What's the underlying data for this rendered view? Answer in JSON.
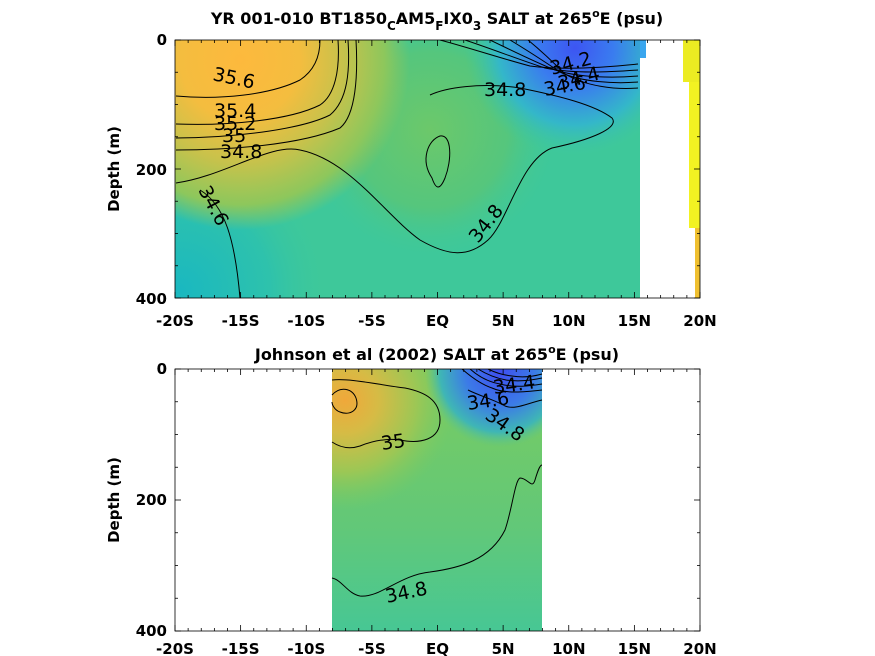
{
  "chart_data": [
    {
      "type": "heatmap",
      "title": {
        "prefix": "YR 001-010 BT1850",
        "sub1": "C",
        "mid1": "AM5",
        "sub2": "F",
        "mid2": "IX0",
        "sub3": "3",
        "suffix": " SALT at 265",
        "sup": "o",
        "end": "E (psu)"
      },
      "ylabel": "Depth (m)",
      "x_ticks": [
        "-20S",
        "-15S",
        "-10S",
        "-5S",
        "EQ",
        "5N",
        "10N",
        "15N",
        "20N"
      ],
      "x_tick_values": [
        -20,
        -15,
        -10,
        -5,
        0,
        5,
        10,
        15,
        20
      ],
      "y_ticks": [
        "0",
        "200",
        "400"
      ],
      "y_tick_values": [
        0,
        200,
        400
      ],
      "xlim": [
        -20,
        20
      ],
      "ylim": [
        0,
        400
      ],
      "y_reversed": true,
      "contour_labels": [
        {
          "text": "35.6",
          "x": -15.5,
          "y": 35
        },
        {
          "text": "35.4",
          "x": -15.3,
          "y": 110
        },
        {
          "text": "35.2",
          "x": -15.5,
          "y": 127
        },
        {
          "text": "35",
          "x": -15.2,
          "y": 145
        },
        {
          "text": "34.8",
          "x": -14.8,
          "y": 177
        },
        {
          "text": "34.6",
          "x": -16.4,
          "y": 256
        },
        {
          "text": "34.8",
          "x": 2.0,
          "y": 79
        },
        {
          "text": "34.8",
          "x": 2.8,
          "y": 278
        },
        {
          "text": "34.2",
          "x": 10.0,
          "y": 55
        },
        {
          "text": "34.4",
          "x": 10.1,
          "y": 70
        },
        {
          "text": "34.6",
          "x": 9.6,
          "y": 79
        }
      ],
      "colors": {
        "fresh": "#3b5cf0",
        "mid": "#3ec89a",
        "salty": "#f6b13d",
        "high": "#f0f02a"
      }
    },
    {
      "type": "heatmap",
      "title": {
        "prefix": "Johnson et al (2002) SALT at 265",
        "sup": "o",
        "end": "E (psu)"
      },
      "ylabel": "Depth (m)",
      "x_ticks": [
        "-20S",
        "-15S",
        "-10S",
        "-5S",
        "EQ",
        "5N",
        "10N",
        "15N",
        "20N"
      ],
      "x_tick_values": [
        -20,
        -15,
        -10,
        -5,
        0,
        5,
        10,
        15,
        20
      ],
      "y_ticks": [
        "0",
        "200",
        "400"
      ],
      "y_tick_values": [
        0,
        200,
        400
      ],
      "xlim": [
        -20,
        20
      ],
      "ylim": [
        0,
        400
      ],
      "y_reversed": true,
      "data_xrange": [
        -8,
        8
      ],
      "contour_labels": [
        {
          "text": "35",
          "x": -3.1,
          "y": 113
        },
        {
          "text": "34.8",
          "x": -2.1,
          "y": 343
        },
        {
          "text": "34.4",
          "x": 5.2,
          "y": 36
        },
        {
          "text": "34.6",
          "x": 4.2,
          "y": 52
        },
        {
          "text": "34.8",
          "x": 5.0,
          "y": 80
        }
      ],
      "colors": {
        "fresh": "#3b5cf0",
        "mid": "#76cc62",
        "salty": "#f0b43f"
      }
    }
  ]
}
